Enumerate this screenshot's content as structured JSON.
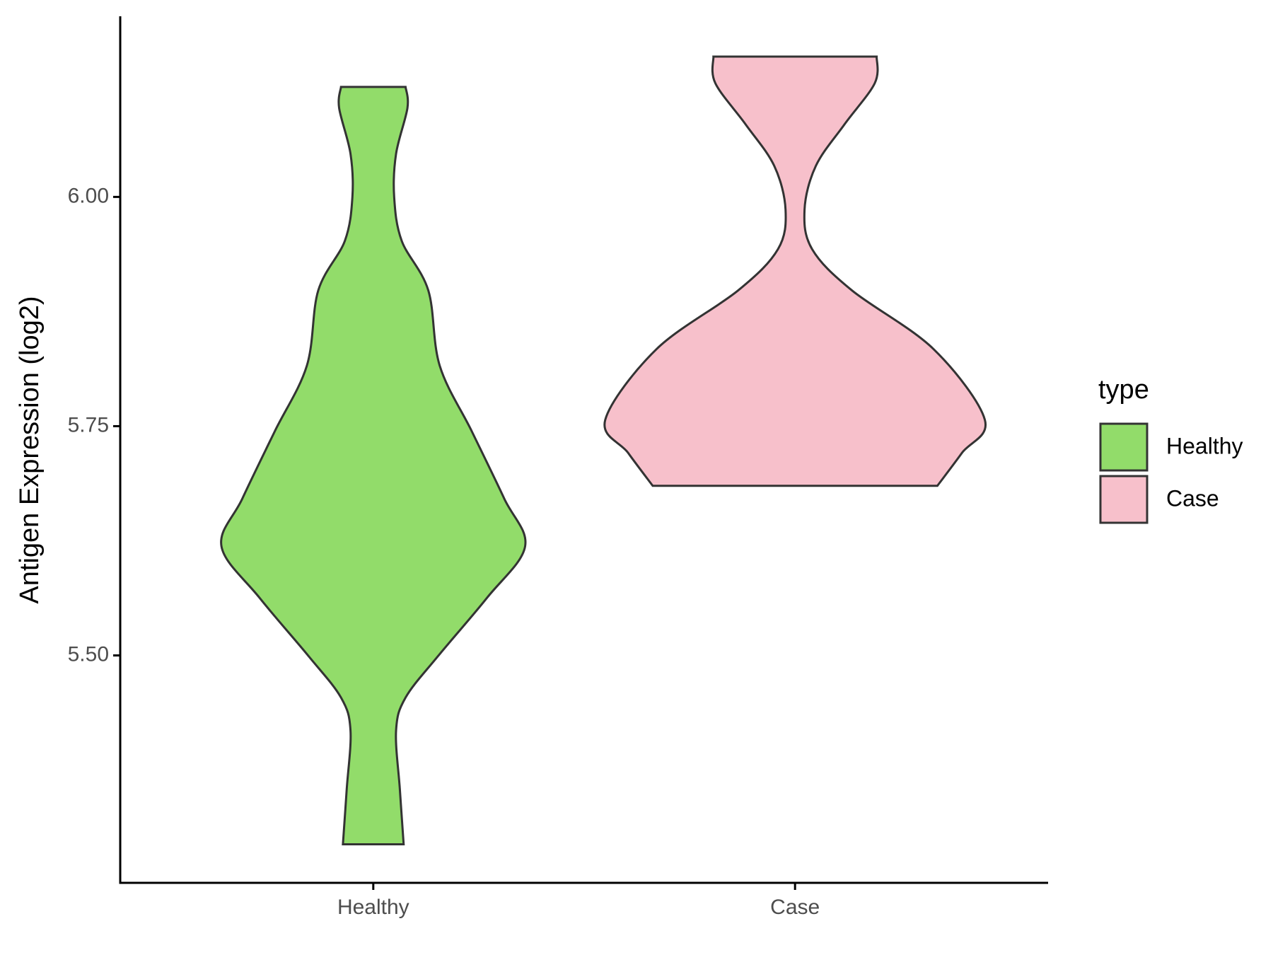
{
  "chart_data": {
    "type": "violin",
    "y_label": "Antigen Expression (log2)",
    "categories": [
      "Healthy",
      "Case"
    ],
    "series": [
      {
        "name": "Healthy",
        "color": "#92dc6a",
        "y": [
          6.12,
          6.097,
          6.047,
          6.0,
          5.952,
          5.898,
          5.816,
          5.744,
          5.671,
          5.619,
          5.563,
          5.499,
          5.454,
          5.418,
          5.354,
          5.294
        ],
        "width": [
          0.17,
          0.18,
          0.12,
          0.11,
          0.15,
          0.29,
          0.35,
          0.52,
          0.69,
          0.8,
          0.6,
          0.34,
          0.17,
          0.12,
          0.14,
          0.16
        ]
      },
      {
        "name": "Case",
        "color": "#f7c0cb",
        "y": [
          6.153,
          6.124,
          6.079,
          6.034,
          5.986,
          5.943,
          5.898,
          5.834,
          5.757,
          5.721,
          5.685
        ],
        "width": [
          0.43,
          0.42,
          0.26,
          0.11,
          0.05,
          0.09,
          0.3,
          0.73,
          1.0,
          0.88,
          0.75
        ]
      }
    ],
    "ylim": [
      5.252,
      6.197
    ],
    "yticks": [
      {
        "value": 5.5,
        "label": "5.50"
      },
      {
        "value": 5.75,
        "label": "5.75"
      },
      {
        "value": 6,
        "label": "6.00"
      }
    ],
    "grid": false,
    "legend_title": "type",
    "legend_position": "right"
  }
}
